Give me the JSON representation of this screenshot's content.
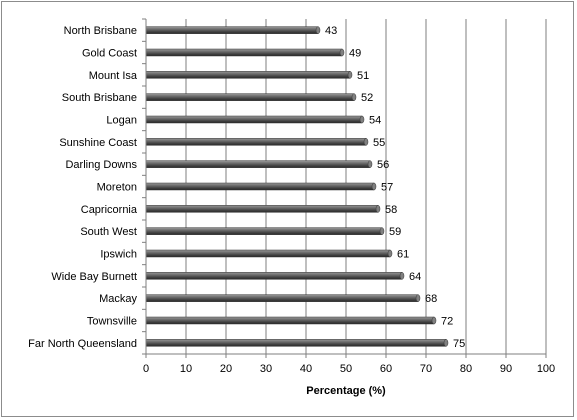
{
  "chart_data": {
    "type": "bar",
    "orientation": "horizontal",
    "categories": [
      "North Brisbane",
      "Gold Coast",
      "Mount Isa",
      "South Brisbane",
      "Logan",
      "Sunshine Coast",
      "Darling Downs",
      "Moreton",
      "Capricornia",
      "South West",
      "Ipswich",
      "Wide Bay Burnett",
      "Mackay",
      "Townsville",
      "Far North Queensland"
    ],
    "values": [
      43,
      49,
      51,
      52,
      54,
      55,
      56,
      57,
      58,
      59,
      61,
      64,
      68,
      72,
      75
    ],
    "xlabel": "Percentage (%)",
    "ylabel": "",
    "xlim": [
      0,
      100
    ],
    "xticks": [
      0,
      10,
      20,
      30,
      40,
      50,
      60,
      70,
      80,
      90,
      100
    ],
    "grid": "vertical",
    "legend": "none",
    "bar_color": "#5a5a5a"
  }
}
